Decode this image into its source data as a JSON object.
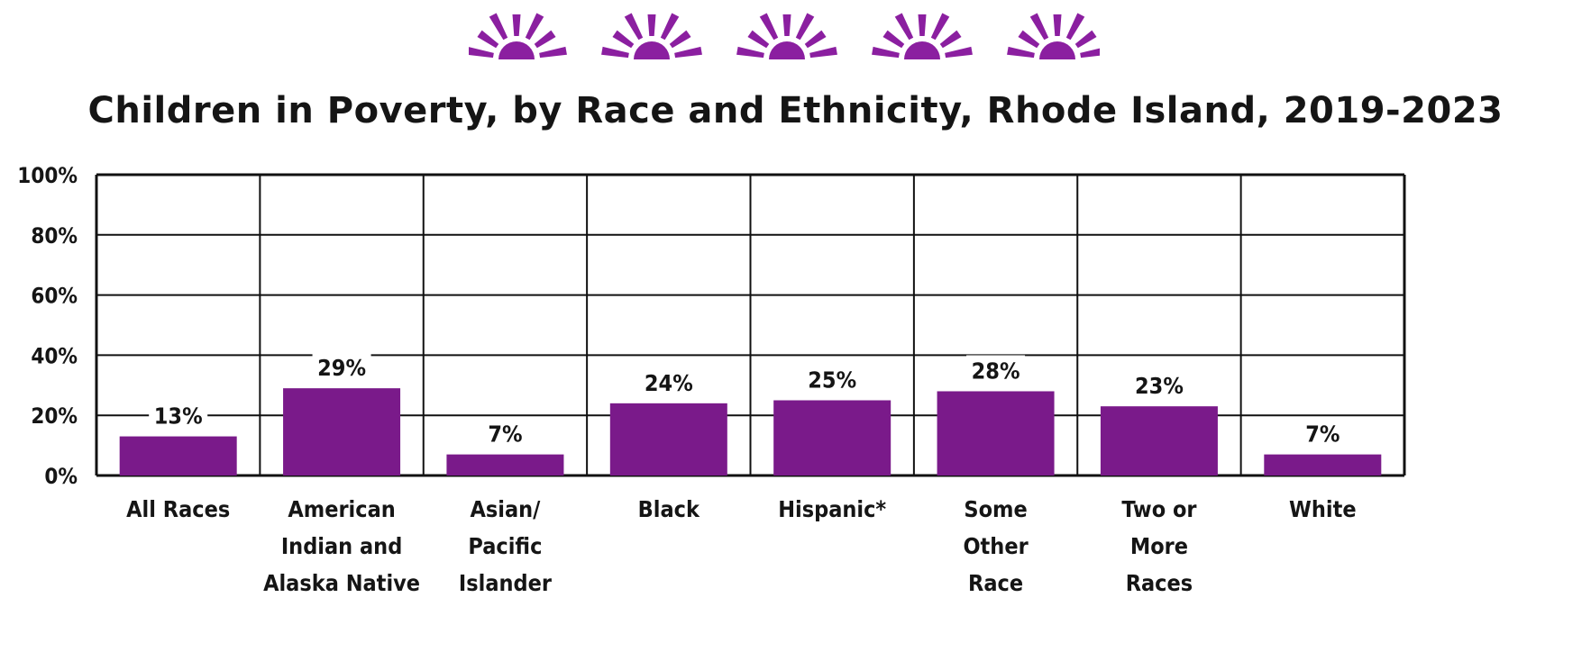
{
  "colors": {
    "bar": "#7a1a8a",
    "accent": "#8b1fa0",
    "text": "#151515",
    "grid": "#111111"
  },
  "chart_data": {
    "type": "bar",
    "title": "Children in Poverty, by Race and Ethnicity, Rhode Island, 2019-2023",
    "categories": [
      [
        "All Races"
      ],
      [
        "American",
        "Indian and",
        "Alaska Native"
      ],
      [
        "Asian/",
        "Pacific",
        "Islander"
      ],
      [
        "Black"
      ],
      [
        "Hispanic*"
      ],
      [
        "Some",
        "Other",
        "Race"
      ],
      [
        "Two or",
        "More",
        "Races"
      ],
      [
        "White"
      ]
    ],
    "values": [
      13,
      29,
      7,
      24,
      25,
      28,
      23,
      7
    ],
    "data_labels": [
      "13%",
      "29%",
      "7%",
      "24%",
      "25%",
      "28%",
      "23%",
      "7%"
    ],
    "ylim": [
      0,
      100
    ],
    "yticks": [
      "0%",
      "20%",
      "40%",
      "60%",
      "80%",
      "100%"
    ],
    "xlabel": "",
    "ylabel": "",
    "grid": true,
    "legend": "none"
  }
}
